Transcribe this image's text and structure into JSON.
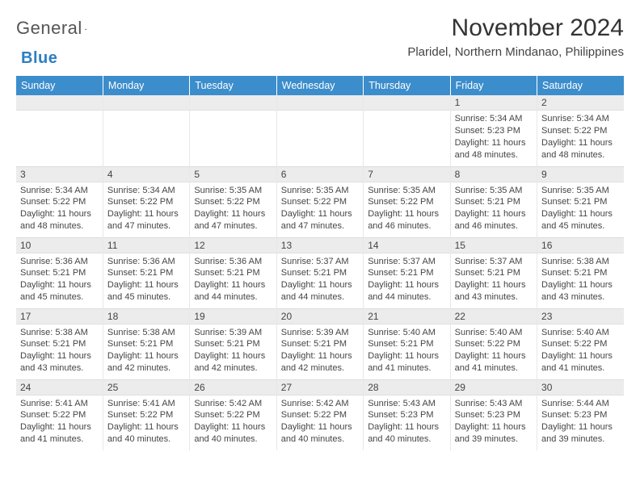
{
  "brand": {
    "part1": "General",
    "part2": "Blue"
  },
  "title": "November 2024",
  "location": "Plaridel, Northern Mindanao, Philippines",
  "colors": {
    "header_bg": "#3c8dcc",
    "header_text": "#ffffff",
    "daynum_bg": "#ececec",
    "text": "#404040",
    "brand_blue": "#2d7fc1"
  },
  "typography": {
    "body_font": "Arial",
    "title_size_pt": 22,
    "cell_size_pt": 8
  },
  "layout": {
    "columns": 7,
    "rows": 5
  },
  "weekdays": [
    "Sunday",
    "Monday",
    "Tuesday",
    "Wednesday",
    "Thursday",
    "Friday",
    "Saturday"
  ],
  "weeks": [
    [
      null,
      null,
      null,
      null,
      null,
      {
        "day": "1",
        "sunrise": "Sunrise: 5:34 AM",
        "sunset": "Sunset: 5:23 PM",
        "dayl1": "Daylight: 11 hours",
        "dayl2": "and 48 minutes."
      },
      {
        "day": "2",
        "sunrise": "Sunrise: 5:34 AM",
        "sunset": "Sunset: 5:22 PM",
        "dayl1": "Daylight: 11 hours",
        "dayl2": "and 48 minutes."
      }
    ],
    [
      {
        "day": "3",
        "sunrise": "Sunrise: 5:34 AM",
        "sunset": "Sunset: 5:22 PM",
        "dayl1": "Daylight: 11 hours",
        "dayl2": "and 48 minutes."
      },
      {
        "day": "4",
        "sunrise": "Sunrise: 5:34 AM",
        "sunset": "Sunset: 5:22 PM",
        "dayl1": "Daylight: 11 hours",
        "dayl2": "and 47 minutes."
      },
      {
        "day": "5",
        "sunrise": "Sunrise: 5:35 AM",
        "sunset": "Sunset: 5:22 PM",
        "dayl1": "Daylight: 11 hours",
        "dayl2": "and 47 minutes."
      },
      {
        "day": "6",
        "sunrise": "Sunrise: 5:35 AM",
        "sunset": "Sunset: 5:22 PM",
        "dayl1": "Daylight: 11 hours",
        "dayl2": "and 47 minutes."
      },
      {
        "day": "7",
        "sunrise": "Sunrise: 5:35 AM",
        "sunset": "Sunset: 5:22 PM",
        "dayl1": "Daylight: 11 hours",
        "dayl2": "and 46 minutes."
      },
      {
        "day": "8",
        "sunrise": "Sunrise: 5:35 AM",
        "sunset": "Sunset: 5:21 PM",
        "dayl1": "Daylight: 11 hours",
        "dayl2": "and 46 minutes."
      },
      {
        "day": "9",
        "sunrise": "Sunrise: 5:35 AM",
        "sunset": "Sunset: 5:21 PM",
        "dayl1": "Daylight: 11 hours",
        "dayl2": "and 45 minutes."
      }
    ],
    [
      {
        "day": "10",
        "sunrise": "Sunrise: 5:36 AM",
        "sunset": "Sunset: 5:21 PM",
        "dayl1": "Daylight: 11 hours",
        "dayl2": "and 45 minutes."
      },
      {
        "day": "11",
        "sunrise": "Sunrise: 5:36 AM",
        "sunset": "Sunset: 5:21 PM",
        "dayl1": "Daylight: 11 hours",
        "dayl2": "and 45 minutes."
      },
      {
        "day": "12",
        "sunrise": "Sunrise: 5:36 AM",
        "sunset": "Sunset: 5:21 PM",
        "dayl1": "Daylight: 11 hours",
        "dayl2": "and 44 minutes."
      },
      {
        "day": "13",
        "sunrise": "Sunrise: 5:37 AM",
        "sunset": "Sunset: 5:21 PM",
        "dayl1": "Daylight: 11 hours",
        "dayl2": "and 44 minutes."
      },
      {
        "day": "14",
        "sunrise": "Sunrise: 5:37 AM",
        "sunset": "Sunset: 5:21 PM",
        "dayl1": "Daylight: 11 hours",
        "dayl2": "and 44 minutes."
      },
      {
        "day": "15",
        "sunrise": "Sunrise: 5:37 AM",
        "sunset": "Sunset: 5:21 PM",
        "dayl1": "Daylight: 11 hours",
        "dayl2": "and 43 minutes."
      },
      {
        "day": "16",
        "sunrise": "Sunrise: 5:38 AM",
        "sunset": "Sunset: 5:21 PM",
        "dayl1": "Daylight: 11 hours",
        "dayl2": "and 43 minutes."
      }
    ],
    [
      {
        "day": "17",
        "sunrise": "Sunrise: 5:38 AM",
        "sunset": "Sunset: 5:21 PM",
        "dayl1": "Daylight: 11 hours",
        "dayl2": "and 43 minutes."
      },
      {
        "day": "18",
        "sunrise": "Sunrise: 5:38 AM",
        "sunset": "Sunset: 5:21 PM",
        "dayl1": "Daylight: 11 hours",
        "dayl2": "and 42 minutes."
      },
      {
        "day": "19",
        "sunrise": "Sunrise: 5:39 AM",
        "sunset": "Sunset: 5:21 PM",
        "dayl1": "Daylight: 11 hours",
        "dayl2": "and 42 minutes."
      },
      {
        "day": "20",
        "sunrise": "Sunrise: 5:39 AM",
        "sunset": "Sunset: 5:21 PM",
        "dayl1": "Daylight: 11 hours",
        "dayl2": "and 42 minutes."
      },
      {
        "day": "21",
        "sunrise": "Sunrise: 5:40 AM",
        "sunset": "Sunset: 5:21 PM",
        "dayl1": "Daylight: 11 hours",
        "dayl2": "and 41 minutes."
      },
      {
        "day": "22",
        "sunrise": "Sunrise: 5:40 AM",
        "sunset": "Sunset: 5:22 PM",
        "dayl1": "Daylight: 11 hours",
        "dayl2": "and 41 minutes."
      },
      {
        "day": "23",
        "sunrise": "Sunrise: 5:40 AM",
        "sunset": "Sunset: 5:22 PM",
        "dayl1": "Daylight: 11 hours",
        "dayl2": "and 41 minutes."
      }
    ],
    [
      {
        "day": "24",
        "sunrise": "Sunrise: 5:41 AM",
        "sunset": "Sunset: 5:22 PM",
        "dayl1": "Daylight: 11 hours",
        "dayl2": "and 41 minutes."
      },
      {
        "day": "25",
        "sunrise": "Sunrise: 5:41 AM",
        "sunset": "Sunset: 5:22 PM",
        "dayl1": "Daylight: 11 hours",
        "dayl2": "and 40 minutes."
      },
      {
        "day": "26",
        "sunrise": "Sunrise: 5:42 AM",
        "sunset": "Sunset: 5:22 PM",
        "dayl1": "Daylight: 11 hours",
        "dayl2": "and 40 minutes."
      },
      {
        "day": "27",
        "sunrise": "Sunrise: 5:42 AM",
        "sunset": "Sunset: 5:22 PM",
        "dayl1": "Daylight: 11 hours",
        "dayl2": "and 40 minutes."
      },
      {
        "day": "28",
        "sunrise": "Sunrise: 5:43 AM",
        "sunset": "Sunset: 5:23 PM",
        "dayl1": "Daylight: 11 hours",
        "dayl2": "and 40 minutes."
      },
      {
        "day": "29",
        "sunrise": "Sunrise: 5:43 AM",
        "sunset": "Sunset: 5:23 PM",
        "dayl1": "Daylight: 11 hours",
        "dayl2": "and 39 minutes."
      },
      {
        "day": "30",
        "sunrise": "Sunrise: 5:44 AM",
        "sunset": "Sunset: 5:23 PM",
        "dayl1": "Daylight: 11 hours",
        "dayl2": "and 39 minutes."
      }
    ]
  ]
}
